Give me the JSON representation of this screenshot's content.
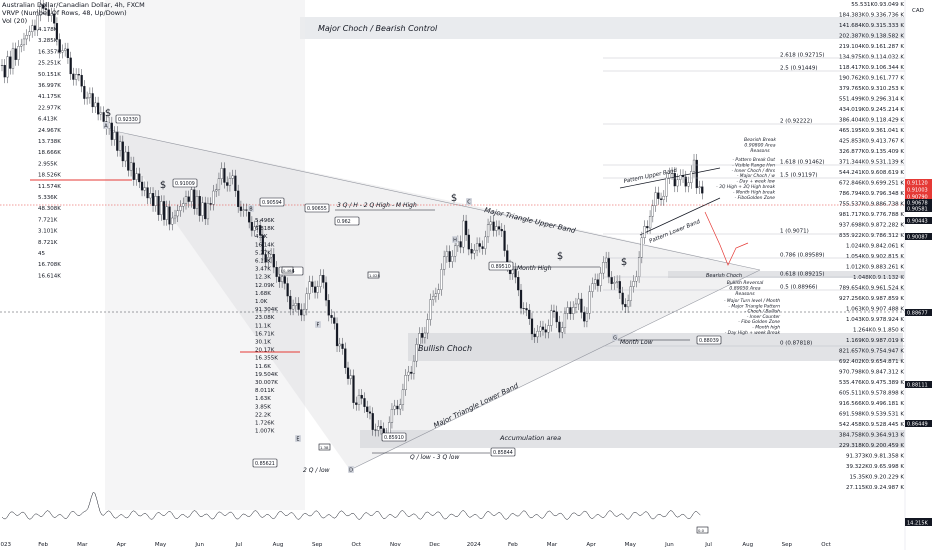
{
  "header": {
    "symbol": "Australian Dollar/Canadian Dollar, 4h, FXCM",
    "vrvp": "VRVP (Number Of Rows, 48, Up/Down)",
    "vol": "Vol (20)",
    "currency": "CAD"
  },
  "colors": {
    "candle_up": "#131722",
    "candle_down": "#131722",
    "bg": "#ffffff",
    "zone": "#dcdde0",
    "red_line": "#e53935",
    "accent_panel": "#e9ebee"
  },
  "chart_data": {
    "type": "candlestick",
    "title": "Australian Dollar/Canadian Dollar, 4h, FXCM",
    "x_tick_labels": [
      "2023",
      "Feb",
      "Mar",
      "Apr",
      "May",
      "Jun",
      "Jul",
      "Aug",
      "Sep",
      "Oct",
      "Nov",
      "Dec",
      "2024",
      "Feb",
      "Mar",
      "Apr",
      "May",
      "Jun",
      "Jul",
      "Aug",
      "Sep",
      "Oct"
    ],
    "y_tick_labels": [
      "0.94000",
      "0.93500",
      "0.93000",
      "0.92500",
      "0.92000",
      "0.91500",
      "0.91000",
      "0.90500",
      "0.90000",
      "0.89500",
      "0.89000",
      "0.88500",
      "0.88000",
      "0.87500",
      "0.87000",
      "0.86500",
      "0.86000",
      "0.85500",
      "0.85000",
      "0.84500"
    ],
    "ylim": [
      0.8435,
      0.9425
    ],
    "close_path": [
      [
        0,
        0.928
      ],
      [
        3,
        0.933
      ],
      [
        6,
        0.938
      ],
      [
        8,
        0.942
      ],
      [
        10,
        0.935
      ],
      [
        12,
        0.93
      ],
      [
        14,
        0.926
      ],
      [
        16,
        0.923
      ],
      [
        19,
        0.918
      ],
      [
        22,
        0.912
      ],
      [
        25,
        0.906
      ],
      [
        28,
        0.902
      ],
      [
        31,
        0.899
      ],
      [
        34,
        0.904
      ],
      [
        37,
        0.9
      ],
      [
        40,
        0.908
      ],
      [
        42,
        0.906
      ],
      [
        44,
        0.9
      ],
      [
        46,
        0.898
      ],
      [
        48,
        0.892
      ],
      [
        50,
        0.889
      ],
      [
        52,
        0.884
      ],
      [
        54,
        0.88
      ],
      [
        56,
        0.885
      ],
      [
        58,
        0.887
      ],
      [
        60,
        0.88
      ],
      [
        61,
        0.875
      ],
      [
        63,
        0.869
      ],
      [
        64,
        0.864
      ],
      [
        66,
        0.862
      ],
      [
        67,
        0.86
      ],
      [
        69,
        0.856
      ],
      [
        71,
        0.86
      ],
      [
        73,
        0.865
      ],
      [
        75,
        0.872
      ],
      [
        77,
        0.878
      ],
      [
        79,
        0.885
      ],
      [
        81,
        0.892
      ],
      [
        83,
        0.893
      ],
      [
        84,
        0.897
      ],
      [
        86,
        0.892
      ],
      [
        88,
        0.896
      ],
      [
        90,
        0.899
      ],
      [
        92,
        0.891
      ],
      [
        94,
        0.885
      ],
      [
        96,
        0.878
      ],
      [
        98,
        0.876
      ],
      [
        100,
        0.88
      ],
      [
        102,
        0.878
      ],
      [
        104,
        0.883
      ],
      [
        106,
        0.88
      ],
      [
        108,
        0.887
      ],
      [
        110,
        0.89
      ],
      [
        112,
        0.885
      ],
      [
        114,
        0.882
      ],
      [
        116,
        0.892
      ],
      [
        118,
        0.901
      ],
      [
        120,
        0.904
      ],
      [
        122,
        0.908
      ],
      [
        124,
        0.906
      ],
      [
        126,
        0.909
      ],
      [
        127,
        0.904
      ],
      [
        128,
        0.906
      ]
    ],
    "price_labels": [
      "55.531K0.93.049 K",
      "184.383K0.9.336.736 K",
      "141.684K0.9.315.333 K",
      "202.387K0.9.138.582 K",
      "219.104K0.9.161.287 K",
      "134.975K0.9.114.032 K",
      "118.417K0.9.106.344 K",
      "190.762K0.9.161.777 K",
      "379.765K0.9.310.253 K",
      "551.499K0.9.296.314 K",
      "434.019K0.9.245.214 K",
      "386.404K0.9.118.429 K",
      "465.195K0.9.361.041 K",
      "425.853K0.9.413.767 K",
      "326.877K0.9.135.409 K",
      "371.344K0.9.531.139 K",
      "544.241K0.9.608.619 K",
      "672.846K0.9.699.251 K",
      "786.794K0.9.796.348 K",
      "755.537K0.9.886.738 K",
      "981.717K0.9.776.788 K",
      "937.698K0.9.872.282 K",
      "835.922K0.9.786.312 K",
      "1.024K0.9.842.061 K",
      "1.054K0.9.902.815 K",
      "1.012K0.9.883.261 K",
      "1.048K0.9.1.132 K",
      "789.654K0.9.961.524 K",
      "927.256K0.9.987.859 K",
      "1.063K0.9.907.488 K",
      "1.043K0.9.978.924 K",
      "1.264K0.9.1.850 K",
      "1.169K0.9.987.019 K",
      "821.657K0.9.754.947 K",
      "692.402K0.9.654.871 K",
      "970.798K0.9.847.312 K",
      "535.476K0.9.475.389 K",
      "605.511K0.9.578.898 K",
      "916.566K0.9.496.181 K",
      "691.598K0.9.539.531 K",
      "542.458K0.9.528.445 K",
      "384.758K0.9.364.913 K",
      "229.318K0.9.200.459 K",
      "91.373K0.9.81.358 K",
      "39.322K0.9.65.998 K",
      "15.35K0.9.20.229 K",
      "27.115K0.9.24.987 K"
    ],
    "side_labels": [
      "4.178K",
      "3.285K",
      "16.357K",
      "25.251K",
      "50.151K",
      "36.997K",
      "41.175K",
      "22.977K",
      "6.413K",
      "24.967K",
      "13.738K",
      "18.666K",
      "2.955K",
      "18.526K",
      "11.574K",
      "5.336K",
      "48.308K",
      "7.721K",
      "3.101K",
      "8.721K",
      "45",
      "16.708K",
      "16.614K"
    ],
    "mid_labels": [
      "5.496K",
      "6.818K",
      "4.5K",
      "16.14K",
      "5.27K",
      "6.13K",
      "3.47K",
      "12.3K",
      "12.09K",
      "1.68K",
      "1.0K",
      "91.304K",
      "23.08K",
      "11.1K",
      "16.71K",
      "30.1K",
      "20.17K",
      "16.355K",
      "11.6K",
      "19.504K",
      "30.007K",
      "8.011K",
      "1.63K",
      "3.85K",
      "22.2K",
      "1.726K",
      "1.007K"
    ],
    "fib_labels": [
      "2.618 (0.92715)",
      "2.5 (0.91449)",
      "2 (0.92222)",
      "1.618 (0.91462)",
      "1.5 (0.91197)",
      "1 (0.9071)",
      "0.786 (0.89589)",
      "0.618 (0.89215)",
      "0.5 (0.88966)",
      "0 (0.87818)"
    ],
    "price_badges": [
      "0.91120",
      "0.91003",
      "0.90790",
      "0.90678",
      "0.90581",
      "0.90443",
      "0.90087",
      "0.88677",
      "0.88111",
      "0.86449"
    ],
    "volume_badge": "14.215K",
    "annotations": {
      "major_choch": "Major Choch / Bearish Control",
      "bullish_choch": "Bullish Choch",
      "accumulation": "Accumulation area",
      "triangle_upper": "Major Triangle Upper Band",
      "triangle_lower": "Major Triangle Lower Band",
      "pattern_upper": "Pattern Upper Band",
      "pattern_lower": "Pattern Lower Band",
      "month_high": "Month High",
      "month_low": "Month Low",
      "q_high": "3 Q / H - 2 Q High - M High",
      "q_low": "Q / low  - 3 Q low",
      "two_q_low": "2 Q / low",
      "bearish_choch": "Bearish Choch"
    },
    "boxes": [
      "0.92330",
      "0.91009",
      "0.90594",
      "0.90655",
      "0.962",
      "0.89510",
      "0.88039",
      "0.85621",
      "0.85844",
      "0.85910",
      "0.904"
    ],
    "tiny_labels": [
      "0.468",
      "1.028",
      "1.38",
      "0.0"
    ],
    "markers": [
      "A",
      "B",
      "C",
      "D",
      "E",
      "F",
      "G",
      "H"
    ],
    "dollar": "$",
    "notes": {
      "bearish_break": [
        "Bearish Break",
        "0.90800 Area",
        "Reasons"
      ],
      "reasons_top": [
        "- Pattern Break Out",
        "- Visible Range Hvn",
        "- Inner Choch / 4hrs",
        "- Major Choch / w",
        "- Day + week low",
        "- 3Q High + 2Q High break",
        "- Month High break",
        "- FiboGolden Zone"
      ],
      "bullish_reversal": [
        "Bullish Reversal",
        "0.89050 Area",
        "Reasons"
      ],
      "reasons_bottom": [
        "- Major Turn level / Month",
        "- Major Triangle Pattern",
        "- Choch / Bullish",
        "- Inner Counter",
        "- Fibo Golden Zone",
        "- Month high",
        "- Day High + week Break"
      ]
    }
  }
}
